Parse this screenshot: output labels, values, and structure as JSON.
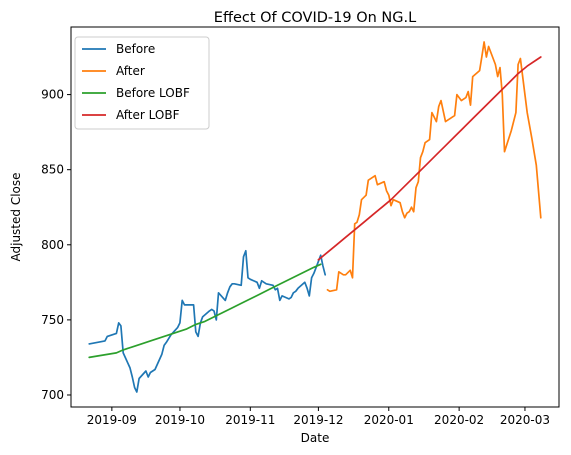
{
  "chart_data": {
    "type": "line",
    "title": "Effect Of COVID-19 On NG.L",
    "xlabel": "Date",
    "ylabel": "Adjusted Close",
    "x_range": [
      "2019-08-14",
      "2020-03-16"
    ],
    "ylim": [
      692,
      945
    ],
    "x_ticks": [
      {
        "date": "2019-09-01",
        "label": "2019-09"
      },
      {
        "date": "2019-10-01",
        "label": "2019-10"
      },
      {
        "date": "2019-11-01",
        "label": "2019-11"
      },
      {
        "date": "2019-12-01",
        "label": "2019-12"
      },
      {
        "date": "2020-01-01",
        "label": "2020-01"
      },
      {
        "date": "2020-02-01",
        "label": "2020-02"
      },
      {
        "date": "2020-03-01",
        "label": "2020-03"
      }
    ],
    "y_ticks": [
      700,
      750,
      800,
      850,
      900
    ],
    "grid": false,
    "legend_position": "top-left",
    "series": [
      {
        "name": "Before",
        "color": "#1f77b4",
        "points": [
          [
            "2019-08-22",
            734
          ],
          [
            "2019-08-29",
            736
          ],
          [
            "2019-08-30",
            739
          ],
          [
            "2019-09-03",
            741
          ],
          [
            "2019-09-04",
            748
          ],
          [
            "2019-09-05",
            746
          ],
          [
            "2019-09-06",
            728
          ],
          [
            "2019-09-09",
            718
          ],
          [
            "2019-09-10",
            712
          ],
          [
            "2019-09-11",
            705
          ],
          [
            "2019-09-12",
            702
          ],
          [
            "2019-09-13",
            711
          ],
          [
            "2019-09-16",
            716
          ],
          [
            "2019-09-17",
            712
          ],
          [
            "2019-09-18",
            715
          ],
          [
            "2019-09-20",
            717
          ],
          [
            "2019-09-23",
            727
          ],
          [
            "2019-09-24",
            733
          ],
          [
            "2019-09-25",
            735
          ],
          [
            "2019-09-27",
            740
          ],
          [
            "2019-09-30",
            745
          ],
          [
            "2019-10-01",
            748
          ],
          [
            "2019-10-02",
            763
          ],
          [
            "2019-10-03",
            760
          ],
          [
            "2019-10-04",
            760
          ],
          [
            "2019-10-07",
            760
          ],
          [
            "2019-10-08",
            742
          ],
          [
            "2019-10-09",
            739
          ],
          [
            "2019-10-10",
            748
          ],
          [
            "2019-10-11",
            752
          ],
          [
            "2019-10-14",
            756
          ],
          [
            "2019-10-15",
            757
          ],
          [
            "2019-10-16",
            756
          ],
          [
            "2019-10-17",
            750
          ],
          [
            "2019-10-18",
            768
          ],
          [
            "2019-10-21",
            763
          ],
          [
            "2019-10-22",
            768
          ],
          [
            "2019-10-23",
            772
          ],
          [
            "2019-10-24",
            774
          ],
          [
            "2019-10-25",
            774
          ],
          [
            "2019-10-28",
            773
          ],
          [
            "2019-10-29",
            792
          ],
          [
            "2019-10-30",
            796
          ],
          [
            "2019-10-31",
            778
          ],
          [
            "2019-11-01",
            777
          ],
          [
            "2019-11-04",
            775
          ],
          [
            "2019-11-05",
            771
          ],
          [
            "2019-11-06",
            776
          ],
          [
            "2019-11-07",
            775
          ],
          [
            "2019-11-08",
            774
          ],
          [
            "2019-11-11",
            773
          ],
          [
            "2019-11-12",
            770
          ],
          [
            "2019-11-13",
            771
          ],
          [
            "2019-11-14",
            763
          ],
          [
            "2019-11-15",
            766
          ],
          [
            "2019-11-18",
            764
          ],
          [
            "2019-11-19",
            765
          ],
          [
            "2019-11-20",
            768
          ],
          [
            "2019-11-21",
            769
          ],
          [
            "2019-11-22",
            771
          ],
          [
            "2019-11-25",
            775
          ],
          [
            "2019-11-26",
            771
          ],
          [
            "2019-11-27",
            766
          ],
          [
            "2019-11-28",
            778
          ],
          [
            "2019-11-29",
            781
          ],
          [
            "2019-12-02",
            793
          ],
          [
            "2019-12-03",
            786
          ],
          [
            "2019-12-04",
            780
          ]
        ]
      },
      {
        "name": "After",
        "color": "#ff7f0e",
        "points": [
          [
            "2019-12-05",
            770
          ],
          [
            "2019-12-06",
            769
          ],
          [
            "2019-12-09",
            770
          ],
          [
            "2019-12-10",
            782
          ],
          [
            "2019-12-12",
            780
          ],
          [
            "2019-12-13",
            780
          ],
          [
            "2019-12-15",
            783
          ],
          [
            "2019-12-16",
            778
          ],
          [
            "2019-12-17",
            814
          ],
          [
            "2019-12-18",
            815
          ],
          [
            "2019-12-19",
            820
          ],
          [
            "2019-12-20",
            830
          ],
          [
            "2019-12-22",
            833
          ],
          [
            "2019-12-23",
            843
          ],
          [
            "2019-12-24",
            844
          ],
          [
            "2019-12-26",
            846
          ],
          [
            "2019-12-27",
            840
          ],
          [
            "2019-12-30",
            842
          ],
          [
            "2019-12-31",
            836
          ],
          [
            "2020-01-01",
            833
          ],
          [
            "2020-01-02",
            826
          ],
          [
            "2020-01-03",
            830
          ],
          [
            "2020-01-06",
            828
          ],
          [
            "2020-01-07",
            822
          ],
          [
            "2020-01-08",
            818
          ],
          [
            "2020-01-09",
            821
          ],
          [
            "2020-01-10",
            822
          ],
          [
            "2020-01-11",
            825
          ],
          [
            "2020-01-12",
            822
          ],
          [
            "2020-01-13",
            838
          ],
          [
            "2020-01-14",
            842
          ],
          [
            "2020-01-15",
            858
          ],
          [
            "2020-01-16",
            862
          ],
          [
            "2020-01-17",
            868
          ],
          [
            "2020-01-19",
            870
          ],
          [
            "2020-01-20",
            888
          ],
          [
            "2020-01-21",
            885
          ],
          [
            "2020-01-22",
            882
          ],
          [
            "2020-01-23",
            892
          ],
          [
            "2020-01-24",
            896
          ],
          [
            "2020-01-26",
            882
          ],
          [
            "2020-01-28",
            884
          ],
          [
            "2020-01-30",
            886
          ],
          [
            "2020-01-31",
            900
          ],
          [
            "2020-02-02",
            896
          ],
          [
            "2020-02-04",
            898
          ],
          [
            "2020-02-05",
            902
          ],
          [
            "2020-02-06",
            893
          ],
          [
            "2020-02-07",
            912
          ],
          [
            "2020-02-10",
            916
          ],
          [
            "2020-02-11",
            925
          ],
          [
            "2020-02-12",
            935
          ],
          [
            "2020-02-13",
            925
          ],
          [
            "2020-02-14",
            932
          ],
          [
            "2020-02-17",
            920
          ],
          [
            "2020-02-18",
            912
          ],
          [
            "2020-02-19",
            918
          ],
          [
            "2020-02-20",
            900
          ],
          [
            "2020-02-21",
            862
          ],
          [
            "2020-02-24",
            876
          ],
          [
            "2020-02-26",
            888
          ],
          [
            "2020-02-27",
            920
          ],
          [
            "2020-02-28",
            924
          ],
          [
            "2020-03-02",
            888
          ],
          [
            "2020-03-04",
            871
          ],
          [
            "2020-03-06",
            853
          ],
          [
            "2020-03-08",
            818
          ]
        ]
      },
      {
        "name": "Before LOBF",
        "color": "#2ca02c",
        "points": [
          [
            "2019-08-22",
            725
          ],
          [
            "2019-08-26",
            726
          ],
          [
            "2019-08-30",
            727
          ],
          [
            "2019-09-03",
            728
          ],
          [
            "2019-09-06",
            730
          ],
          [
            "2019-09-10",
            732
          ],
          [
            "2019-09-14",
            734
          ],
          [
            "2019-09-18",
            736
          ],
          [
            "2019-09-22",
            738
          ],
          [
            "2019-09-26",
            740
          ],
          [
            "2019-09-30",
            742
          ],
          [
            "2019-10-04",
            744
          ],
          [
            "2019-10-08",
            747
          ],
          [
            "2019-10-12",
            749
          ],
          [
            "2019-10-16",
            752
          ],
          [
            "2019-10-20",
            755
          ],
          [
            "2019-10-24",
            758
          ],
          [
            "2019-10-28",
            761
          ],
          [
            "2019-11-01",
            764
          ],
          [
            "2019-11-05",
            767
          ],
          [
            "2019-11-09",
            770
          ],
          [
            "2019-11-13",
            773
          ],
          [
            "2019-11-17",
            776
          ],
          [
            "2019-11-21",
            779
          ],
          [
            "2019-11-25",
            782
          ],
          [
            "2019-11-29",
            785
          ],
          [
            "2019-12-02",
            787
          ]
        ]
      },
      {
        "name": "After LOBF",
        "color": "#d62728",
        "points": [
          [
            "2019-12-01",
            790
          ],
          [
            "2019-12-05",
            795
          ],
          [
            "2019-12-09",
            800
          ],
          [
            "2019-12-13",
            805
          ],
          [
            "2019-12-17",
            810
          ],
          [
            "2019-12-21",
            815
          ],
          [
            "2019-12-25",
            820
          ],
          [
            "2019-12-29",
            825
          ],
          [
            "2020-01-02",
            830
          ],
          [
            "2020-01-06",
            836
          ],
          [
            "2020-01-10",
            842
          ],
          [
            "2020-01-14",
            848
          ],
          [
            "2020-01-18",
            854
          ],
          [
            "2020-01-22",
            860
          ],
          [
            "2020-01-26",
            866
          ],
          [
            "2020-01-30",
            872
          ],
          [
            "2020-02-03",
            878
          ],
          [
            "2020-02-07",
            884
          ],
          [
            "2020-02-11",
            890
          ],
          [
            "2020-02-15",
            896
          ],
          [
            "2020-02-19",
            902
          ],
          [
            "2020-02-23",
            908
          ],
          [
            "2020-02-27",
            914
          ],
          [
            "2020-03-02",
            919
          ],
          [
            "2020-03-06",
            923
          ],
          [
            "2020-03-08",
            925
          ]
        ]
      }
    ]
  }
}
